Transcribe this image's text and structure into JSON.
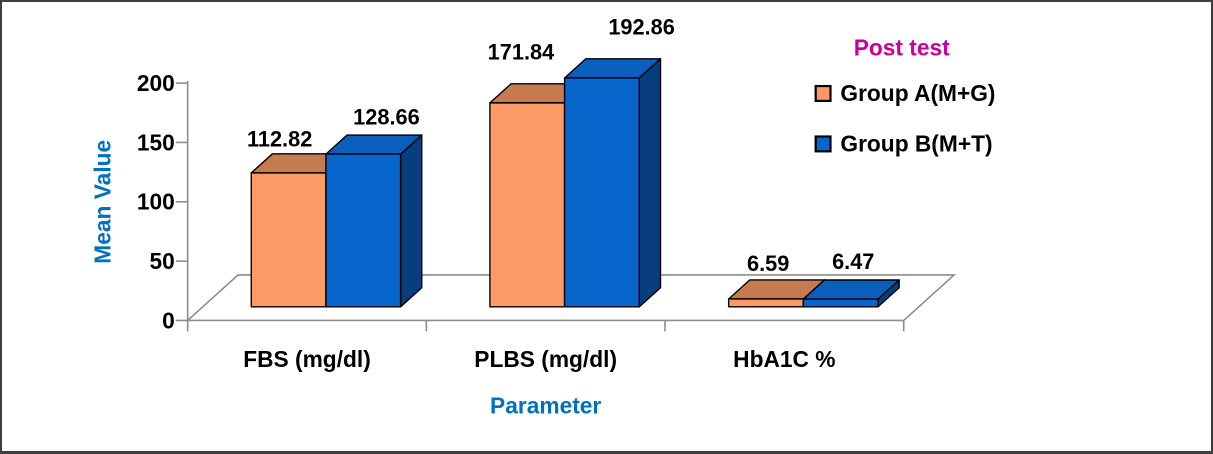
{
  "chart_data": {
    "type": "bar",
    "style": "3d-clustered-column",
    "title": "Post test",
    "categories": [
      "FBS (mg/dl)",
      "PLBS (mg/dl)",
      "HbA1C %"
    ],
    "series": [
      {
        "name": "Group A(M+G)",
        "values": [
          112.82,
          171.84,
          6.59
        ],
        "color": "#FB9A66",
        "top_color": "#C67A50",
        "side_color": "#A05A38"
      },
      {
        "name": "Group B(M+T)",
        "values": [
          128.66,
          192.86,
          6.47
        ],
        "color": "#0666CC",
        "top_color": "#0A5FBE",
        "side_color": "#063E7E"
      }
    ],
    "data_labels": [
      [
        "112.82",
        "171.84",
        "6.59"
      ],
      [
        "128.66",
        "192.86",
        "6.47"
      ]
    ],
    "xlabel": "Parameter",
    "ylabel": "Mean Value",
    "y_ticks": [
      "0",
      "50",
      "100",
      "150",
      "200"
    ],
    "ylim": [
      0,
      200
    ],
    "grid": false,
    "legend_position": "right",
    "colors": {
      "axis": "#8C8C8C",
      "title": "#CC0099",
      "axis_title": "#0070C0",
      "text": "#000000",
      "frame_border": "#3F3F3F"
    }
  }
}
